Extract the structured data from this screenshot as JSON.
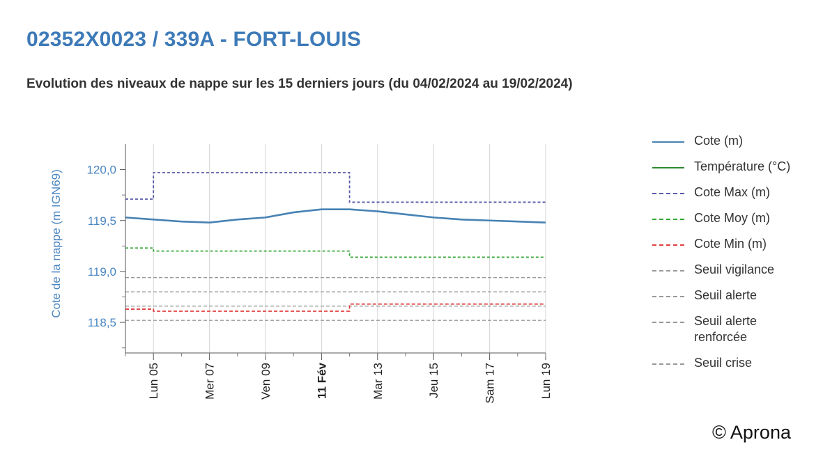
{
  "page": {
    "title": "02352X0023 / 339A - FORT-LOUIS",
    "subtitle": "Evolution des niveaux de nappe sur les 15 derniers jours (du 04/02/2024 au 19/02/2024)",
    "copyright": "© Aprona"
  },
  "chart_data": {
    "type": "line",
    "ylabel": "Cote de la nappe (m IGN69)",
    "ylim": [
      118.2,
      120.25
    ],
    "y_ticks": [
      "120,0",
      "119,5",
      "119,0",
      "118,5"
    ],
    "y_tick_values": [
      120.0,
      119.5,
      119.0,
      118.5
    ],
    "xlim": [
      "2024-02-04",
      "2024-02-19"
    ],
    "x_ticks": [
      {
        "x": "2024-02-05",
        "label": "Lun 05",
        "bold": false
      },
      {
        "x": "2024-02-07",
        "label": "Mer 07",
        "bold": false
      },
      {
        "x": "2024-02-09",
        "label": "Ven 09",
        "bold": false
      },
      {
        "x": "2024-02-11",
        "label": "11 Fév",
        "bold": true
      },
      {
        "x": "2024-02-13",
        "label": "Mar 13",
        "bold": false
      },
      {
        "x": "2024-02-15",
        "label": "Jeu 15",
        "bold": false
      },
      {
        "x": "2024-02-17",
        "label": "Sam 17",
        "bold": false
      },
      {
        "x": "2024-02-19",
        "label": "Lun 19",
        "bold": false
      }
    ],
    "series": [
      {
        "name": "Cote (m)",
        "style": "solid",
        "color": "#4682b4",
        "shape": "line",
        "x": [
          "2024-02-04",
          "2024-02-05",
          "2024-02-06",
          "2024-02-07",
          "2024-02-08",
          "2024-02-09",
          "2024-02-10",
          "2024-02-11",
          "2024-02-12",
          "2024-02-13",
          "2024-02-14",
          "2024-02-15",
          "2024-02-16",
          "2024-02-17",
          "2024-02-18",
          "2024-02-19"
        ],
        "y": [
          119.53,
          119.51,
          119.49,
          119.48,
          119.51,
          119.53,
          119.58,
          119.61,
          119.61,
          119.59,
          119.56,
          119.53,
          119.51,
          119.5,
          119.49,
          119.48
        ]
      },
      {
        "name": "Température (°C)",
        "style": "solid",
        "color": "#2e8b2e",
        "shape": "none",
        "x": [],
        "y": []
      },
      {
        "name": "Cote Max (m)",
        "style": "dotted",
        "color": "#5a5aa8",
        "shape": "step",
        "x": [
          "2024-02-04",
          "2024-02-05",
          "2024-02-12",
          "2024-02-19"
        ],
        "y": [
          119.71,
          119.97,
          119.68,
          119.68
        ]
      },
      {
        "name": "Cote Moy (m)",
        "style": "dotted",
        "color": "#3aa83a",
        "shape": "step",
        "x": [
          "2024-02-04",
          "2024-02-05",
          "2024-02-12",
          "2024-02-19"
        ],
        "y": [
          119.23,
          119.2,
          119.14,
          119.14
        ]
      },
      {
        "name": "Cote Min (m)",
        "style": "dashed",
        "color": "#e04040",
        "shape": "step",
        "x": [
          "2024-02-04",
          "2024-02-05",
          "2024-02-12",
          "2024-02-19"
        ],
        "y": [
          118.63,
          118.61,
          118.68,
          118.68
        ]
      },
      {
        "name": "Seuil vigilance",
        "style": "dashed",
        "color": "#999999",
        "shape": "hline",
        "y": [
          118.94
        ]
      },
      {
        "name": "Seuil alerte",
        "style": "dashed",
        "color": "#999999",
        "shape": "hline",
        "y": [
          118.8
        ]
      },
      {
        "name": "Seuil alerte renforcée",
        "style": "dashed",
        "color": "#999999",
        "shape": "hline",
        "y": [
          118.66
        ]
      },
      {
        "name": "Seuil crise",
        "style": "dashed",
        "color": "#999999",
        "shape": "hline",
        "y": [
          118.52
        ]
      }
    ],
    "grid": "vertical",
    "legend": "right"
  }
}
